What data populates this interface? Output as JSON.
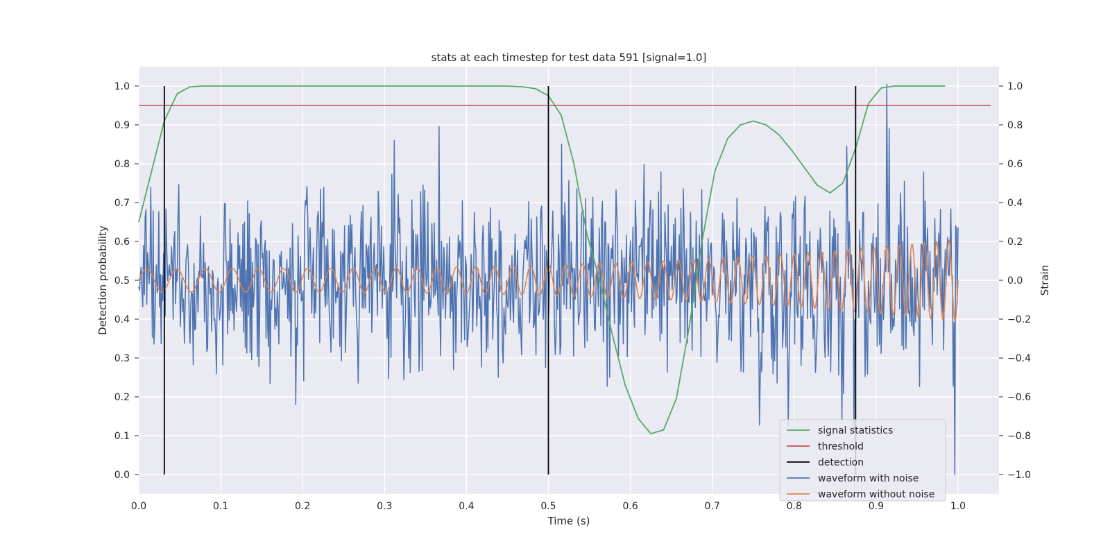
{
  "chart_data": {
    "type": "line",
    "title": "stats at each timestep for test data 591 [signal=1.0]",
    "xlabel": "Time (s)",
    "ylabel": "Detection probability",
    "y2label": "Strain",
    "xlim": [
      0.0,
      1.05
    ],
    "ylim": [
      -0.05,
      1.05
    ],
    "y2lim": [
      -1.1,
      1.1
    ],
    "grid": true,
    "legend_position": "lower-right",
    "x_ticks": [
      "0.0",
      "0.1",
      "0.2",
      "0.3",
      "0.4",
      "0.5",
      "0.6",
      "0.7",
      "0.8",
      "0.9",
      "1.0"
    ],
    "y_ticks": [
      "0.0",
      "0.1",
      "0.2",
      "0.3",
      "0.4",
      "0.5",
      "0.6",
      "0.7",
      "0.8",
      "0.9",
      "1.0"
    ],
    "y2_ticks": [
      "−1.0",
      "−0.8",
      "−0.6",
      "−0.4",
      "−0.2",
      "0.0",
      "0.2",
      "0.4",
      "0.6",
      "0.8",
      "1.0"
    ],
    "series": [
      {
        "name": "signal statistics",
        "color": "#55a868",
        "axis": "left",
        "x": [
          0.0,
          0.0156,
          0.0312,
          0.0469,
          0.0625,
          0.0781,
          0.0938,
          0.1094,
          0.125,
          0.2,
          0.3,
          0.4,
          0.45,
          0.4688,
          0.4844,
          0.5,
          0.5156,
          0.5312,
          0.5469,
          0.5625,
          0.5781,
          0.5938,
          0.6094,
          0.625,
          0.6406,
          0.6562,
          0.6719,
          0.6875,
          0.7031,
          0.7188,
          0.7344,
          0.75,
          0.7656,
          0.7812,
          0.7969,
          0.8125,
          0.8281,
          0.8438,
          0.8594,
          0.875,
          0.8906,
          0.9062,
          0.9219,
          0.9375,
          0.9844
        ],
        "y": [
          0.65,
          0.78,
          0.91,
          0.98,
          0.998,
          1.0,
          1.0,
          1.0,
          1.0,
          1.0,
          1.0,
          1.0,
          1.0,
          0.998,
          0.993,
          0.975,
          0.925,
          0.8,
          0.62,
          0.5,
          0.36,
          0.23,
          0.145,
          0.105,
          0.115,
          0.195,
          0.38,
          0.6,
          0.78,
          0.865,
          0.9,
          0.91,
          0.9,
          0.875,
          0.835,
          0.79,
          0.745,
          0.725,
          0.75,
          0.84,
          0.955,
          0.995,
          1.0,
          1.0,
          1.0
        ]
      },
      {
        "name": "threshold",
        "color": "#c44e52",
        "axis": "left",
        "x": [
          0.0,
          1.04
        ],
        "y": [
          0.95,
          0.95
        ]
      },
      {
        "name": "detection",
        "color": "#000000",
        "axis": "left",
        "type": "vlines",
        "x": [
          0.0312,
          0.5,
          0.875
        ],
        "ymin": 0.0,
        "ymax": 1.0
      },
      {
        "name": "waveform with noise",
        "color": "#4c72b0",
        "axis": "right",
        "noise_std": 0.32,
        "samples": 1024,
        "spikes": [
          {
            "x": 0.367,
            "y": 0.79
          },
          {
            "x": 0.192,
            "y": -0.64
          },
          {
            "x": 0.913,
            "y": 1.01
          },
          {
            "x": 0.916,
            "y": 0.78
          },
          {
            "x": 0.996,
            "y": -1.0
          },
          {
            "x": 0.858,
            "y": -0.72
          },
          {
            "x": 0.873,
            "y": -0.78
          },
          {
            "x": 0.516,
            "y": 0.7
          }
        ]
      },
      {
        "name": "waveform without noise",
        "color": "#dd8452",
        "axis": "right",
        "f_start": 26,
        "f_end": 68,
        "amp_start": 0.06,
        "amp_end": 0.21
      }
    ]
  }
}
